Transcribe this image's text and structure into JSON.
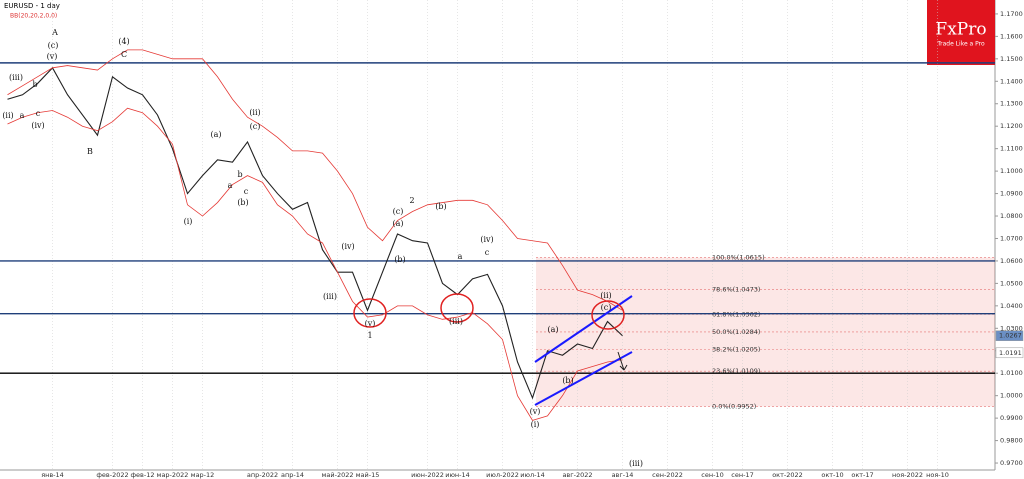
{
  "chart_data": {
    "type": "line",
    "title": "EURUSD - 1 day",
    "indicator": "BB(20,20,2,0,0)",
    "categories": [
      null,
      null,
      null,
      "янв-14",
      null,
      null,
      null,
      "фев-2022",
      null,
      "фев-12",
      null,
      "мар-2022",
      null,
      "мар-12",
      null,
      null,
      null,
      "апр-2022",
      null,
      "апр-14",
      null,
      null,
      "май-2022",
      null,
      "май-15",
      null,
      null,
      null,
      "июн-2022",
      null,
      "июн-14",
      null,
      null,
      "июл-2022",
      null,
      "июл-14",
      null,
      null,
      "авг-2022",
      null,
      null,
      "авг-14",
      null,
      null,
      "сен-2022",
      null,
      null,
      "сен-10",
      null,
      "сен-17",
      null,
      null,
      "окт-2022",
      null,
      null,
      "окт-10",
      null,
      "окт-17",
      null,
      null,
      "ноя-2022",
      null,
      "ноя-10",
      null,
      null,
      null,
      null
    ],
    "series": [
      {
        "color": "#222222",
        "values": [
          1.132,
          1.134,
          1.139,
          1.146,
          1.134,
          1.125,
          1.116,
          1.142,
          1.137,
          1.134,
          1.125,
          1.11,
          1.09,
          1.098,
          1.105,
          1.104,
          1.113,
          1.098,
          1.09,
          1.083,
          1.086,
          1.065,
          1.055,
          1.055,
          1.038,
          1.055,
          1.072,
          1.069,
          1.068,
          1.05,
          1.045,
          1.052,
          1.054,
          1.04,
          1.015,
          0.999,
          1.02,
          1.018,
          1.023,
          1.021,
          1.033,
          1.0267,
          null,
          null,
          null,
          null,
          null,
          null,
          null,
          null,
          null,
          null,
          null,
          null,
          null,
          null,
          null,
          null,
          null,
          null,
          null,
          null,
          null,
          null,
          null,
          null,
          null
        ]
      },
      {
        "color": "#e53935",
        "values": [
          1.134,
          1.138,
          1.142,
          1.146,
          1.147,
          1.146,
          1.145,
          1.15,
          1.154,
          1.154,
          1.152,
          1.15,
          1.15,
          1.15,
          1.142,
          1.132,
          1.124,
          1.12,
          1.115,
          1.109,
          1.109,
          1.108,
          1.1,
          1.09,
          1.075,
          1.069,
          1.078,
          1.082,
          1.085,
          1.086,
          1.087,
          1.087,
          1.085,
          1.078,
          1.07,
          1.069,
          1.068,
          1.058,
          1.047,
          1.045,
          1.042,
          1.038,
          null,
          null,
          null,
          null,
          null,
          null,
          null,
          null,
          null,
          null,
          null,
          null,
          null,
          null,
          null,
          null,
          null,
          null,
          null,
          null,
          null,
          null,
          null,
          null,
          null
        ]
      },
      {
        "color": "#e53935",
        "values": [
          1.121,
          1.124,
          1.126,
          1.127,
          1.124,
          1.12,
          1.118,
          1.122,
          1.128,
          1.126,
          1.12,
          1.112,
          1.085,
          1.08,
          1.086,
          1.094,
          1.098,
          1.095,
          1.085,
          1.08,
          1.072,
          1.068,
          1.055,
          1.042,
          1.035,
          1.036,
          1.04,
          1.04,
          1.036,
          1.034,
          1.035,
          1.037,
          1.032,
          1.025,
          1.0,
          0.989,
          0.991,
          1.0,
          1.011,
          1.013,
          1.015,
          1.016,
          null,
          null,
          null,
          null,
          null,
          null,
          null,
          null,
          null,
          null,
          null,
          null,
          null,
          null,
          null,
          null,
          null,
          null,
          null,
          null,
          null,
          null,
          null,
          null,
          null
        ]
      }
    ],
    "ylim": [
      0.9669,
      1.1762
    ],
    "yticks": [
      {
        "value": 0.97,
        "label": "0.9700"
      },
      {
        "value": 0.98,
        "label": "0.9800"
      },
      {
        "value": 0.99,
        "label": "0.9900"
      },
      {
        "value": 1.0,
        "label": "1.0000"
      },
      {
        "value": 1.01,
        "label": "1.0100"
      },
      {
        "value": 1.02,
        "label": "1.0200"
      },
      {
        "value": 1.03,
        "label": "1.0300"
      },
      {
        "value": 1.04,
        "label": "1.0400"
      },
      {
        "value": 1.05,
        "label": "1.0500"
      },
      {
        "value": 1.06,
        "label": "1.0600"
      },
      {
        "value": 1.07,
        "label": "1.0700"
      },
      {
        "value": 1.08,
        "label": "1.0800"
      },
      {
        "value": 1.09,
        "label": "1.0900"
      },
      {
        "value": 1.1,
        "label": "1.1000"
      },
      {
        "value": 1.11,
        "label": "1.1100"
      },
      {
        "value": 1.12,
        "label": "1.1200"
      },
      {
        "value": 1.13,
        "label": "1.1300"
      },
      {
        "value": 1.14,
        "label": "1.1400"
      },
      {
        "value": 1.15,
        "label": "1.1500"
      },
      {
        "value": 1.16,
        "label": "1.1600"
      },
      {
        "value": 1.17,
        "label": "1.1700"
      }
    ],
    "hlines": [
      {
        "value": 1.1482,
        "color": "#1f3f7a"
      },
      {
        "value": 1.06,
        "color": "#1f3f7a"
      },
      {
        "value": 1.0365,
        "color": "#1f3f7a"
      },
      {
        "value": 1.01,
        "color": "#000000"
      }
    ],
    "fib_levels": [
      {
        "value": 1.0615,
        "label": "100.0%(1.0615)"
      },
      {
        "value": 1.0473,
        "label": "78.6%(1.0473)"
      },
      {
        "value": 1.0362,
        "label": "61.8%(1.0362)"
      },
      {
        "value": 1.0284,
        "label": "50.0%(1.0284)"
      },
      {
        "value": 1.0205,
        "label": "38.2%(1.0205)"
      },
      {
        "value": 1.0109,
        "label": "23.6%(1.0109)"
      },
      {
        "value": 0.9952,
        "label": "0.0%(0.9952)"
      }
    ],
    "price_tags": [
      {
        "value": 1.0267,
        "label": "1.0267",
        "color": "#6b8fc4"
      },
      {
        "value": 1.0191,
        "label": "1.0191",
        "color": "#ffffff"
      }
    ],
    "annotations": [
      "A",
      "(c)",
      "(v)",
      "(iii)",
      "b",
      "(ii)",
      "a",
      "c",
      "(iv)",
      "B",
      "(4)",
      "C",
      "(i)",
      "(a)",
      "a",
      "b",
      "c",
      "(b)",
      "(c)",
      "(ii)",
      "(iii)",
      "(iv)",
      "(v)",
      "1",
      "(a)",
      "(c)",
      "(b)",
      "2",
      "(b)",
      "(iii)",
      "a",
      "c",
      "(iv)",
      "(a)",
      "(b)",
      "(c)",
      "(ii)",
      "(v)",
      "(i)",
      "(iii)"
    ],
    "logo": {
      "name": "FxPro",
      "tagline": "Trade Like a Pro"
    }
  }
}
